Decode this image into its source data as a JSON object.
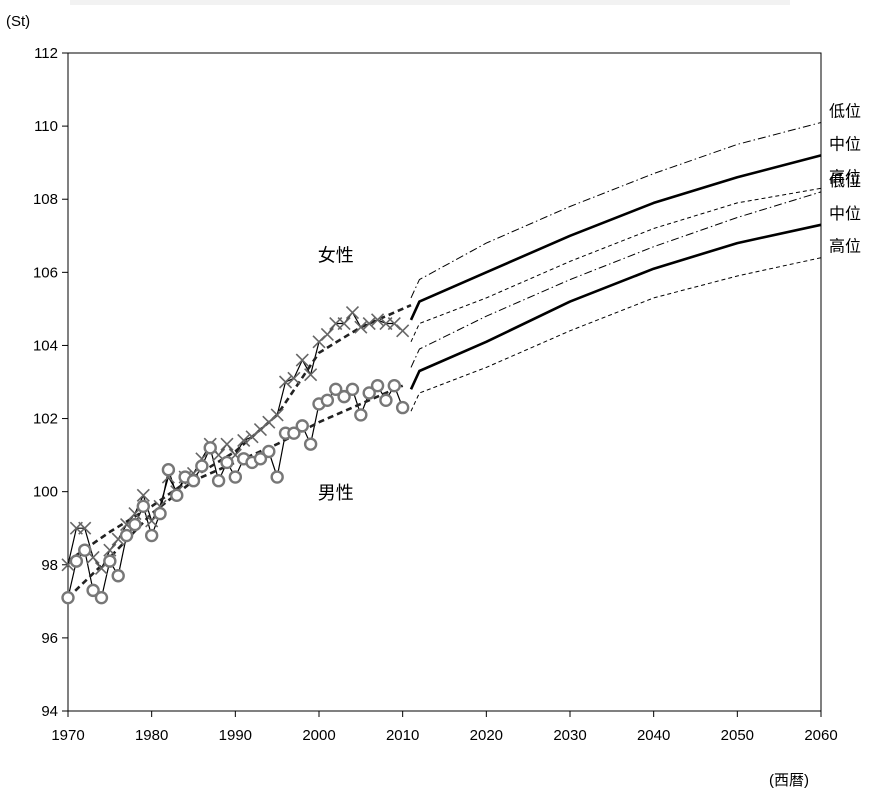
{
  "chart_data": {
    "type": "line",
    "y_unit": "(St)",
    "x_unit": "(西暦)",
    "xlim": [
      1970,
      2060
    ],
    "ylim": [
      94,
      112
    ],
    "x_ticks": [
      "1970",
      "1980",
      "1990",
      "2000",
      "2010",
      "2020",
      "2030",
      "2040",
      "2050",
      "2060"
    ],
    "y_ticks": [
      "94",
      "96",
      "98",
      "100",
      "102",
      "104",
      "106",
      "108",
      "110",
      "112"
    ],
    "group_labels": {
      "female": {
        "text": "女性",
        "at": [
          2002,
          106.3
        ]
      },
      "male": {
        "text": "男性",
        "at": [
          2002,
          99.8
        ]
      }
    },
    "series": [
      {
        "group": "female",
        "kind": "observed",
        "marker": "x",
        "x": [
          1970,
          1971,
          1972,
          1973,
          1974,
          1975,
          1976,
          1977,
          1978,
          1979,
          1980,
          1981,
          1982,
          1983,
          1984,
          1985,
          1986,
          1987,
          1988,
          1989,
          1990,
          1991,
          1992,
          1993,
          1994,
          1995,
          1996,
          1997,
          1998,
          1999,
          2000,
          2001,
          2002,
          2003,
          2004,
          2005,
          2006,
          2007,
          2008,
          2009,
          2010
        ],
        "y": [
          98.0,
          99.0,
          99.0,
          98.2,
          97.9,
          98.4,
          98.7,
          99.1,
          99.4,
          99.9,
          99.2,
          99.6,
          100.4,
          100.0,
          100.4,
          100.5,
          100.9,
          101.3,
          101.0,
          101.3,
          101.0,
          101.4,
          101.5,
          101.7,
          101.9,
          102.1,
          103.0,
          103.1,
          103.6,
          103.2,
          104.1,
          104.3,
          104.6,
          104.6,
          104.9,
          104.5,
          104.6,
          104.7,
          104.6,
          104.6,
          104.4
        ]
      },
      {
        "group": "male",
        "kind": "observed",
        "marker": "circle",
        "x": [
          1970,
          1971,
          1972,
          1973,
          1974,
          1975,
          1976,
          1977,
          1978,
          1979,
          1980,
          1981,
          1982,
          1983,
          1984,
          1985,
          1986,
          1987,
          1988,
          1989,
          1990,
          1991,
          1992,
          1993,
          1994,
          1995,
          1996,
          1997,
          1998,
          1999,
          2000,
          2001,
          2002,
          2003,
          2004,
          2005,
          2006,
          2007,
          2008,
          2009,
          2010
        ],
        "y": [
          97.1,
          98.1,
          98.4,
          97.3,
          97.1,
          98.1,
          97.7,
          98.8,
          99.1,
          99.6,
          98.8,
          99.4,
          100.6,
          99.9,
          100.4,
          100.3,
          100.7,
          101.2,
          100.3,
          100.8,
          100.4,
          100.9,
          100.8,
          100.9,
          101.1,
          100.4,
          101.6,
          101.6,
          101.8,
          101.3,
          102.4,
          102.5,
          102.8,
          102.6,
          102.8,
          102.1,
          102.7,
          102.9,
          102.5,
          102.9,
          102.3
        ]
      },
      {
        "group": "female",
        "kind": "fitted",
        "x": [
          1970,
          1975,
          1980,
          1985,
          1990,
          1995,
          2000,
          2005,
          2011
        ],
        "y": [
          98.1,
          98.9,
          99.6,
          100.4,
          101.1,
          102.1,
          103.8,
          104.5,
          105.1
        ]
      },
      {
        "group": "male",
        "kind": "fitted",
        "x": [
          1970,
          1975,
          1980,
          1985,
          1990,
          1995,
          2000,
          2005,
          2010
        ],
        "y": [
          97.1,
          98.2,
          99.4,
          100.3,
          100.8,
          101.3,
          101.9,
          102.4,
          102.9
        ]
      },
      {
        "group": "female",
        "kind": "projection",
        "name": "低位",
        "x": [
          2011,
          2012,
          2020,
          2030,
          2040,
          2050,
          2060
        ],
        "y": [
          105.3,
          105.8,
          106.8,
          107.8,
          108.7,
          109.5,
          110.1
        ]
      },
      {
        "group": "female",
        "kind": "projection",
        "name": "中位",
        "x": [
          2011,
          2012,
          2020,
          2030,
          2040,
          2050,
          2060
        ],
        "y": [
          104.7,
          105.2,
          106.0,
          107.0,
          107.9,
          108.6,
          109.2
        ]
      },
      {
        "group": "female",
        "kind": "projection",
        "name": "高位",
        "x": [
          2011,
          2012,
          2020,
          2030,
          2040,
          2050,
          2060
        ],
        "y": [
          104.1,
          104.6,
          105.3,
          106.3,
          107.2,
          107.9,
          108.3
        ]
      },
      {
        "group": "male",
        "kind": "projection",
        "name": "低位",
        "x": [
          2011,
          2012,
          2020,
          2030,
          2040,
          2050,
          2060
        ],
        "y": [
          103.4,
          103.9,
          104.8,
          105.8,
          106.7,
          107.5,
          108.2
        ]
      },
      {
        "group": "male",
        "kind": "projection",
        "name": "中位",
        "x": [
          2011,
          2012,
          2020,
          2030,
          2040,
          2050,
          2060
        ],
        "y": [
          102.8,
          103.3,
          104.1,
          105.2,
          106.1,
          106.8,
          107.3
        ]
      },
      {
        "group": "male",
        "kind": "projection",
        "name": "高位",
        "x": [
          2011,
          2012,
          2020,
          2030,
          2040,
          2050,
          2060
        ],
        "y": [
          102.2,
          102.7,
          103.4,
          104.4,
          105.3,
          105.9,
          106.4
        ]
      }
    ],
    "right_labels": [
      "低位",
      "中位",
      "高位",
      "低位",
      "中位",
      "高位"
    ],
    "grid": false,
    "legend": "none"
  }
}
